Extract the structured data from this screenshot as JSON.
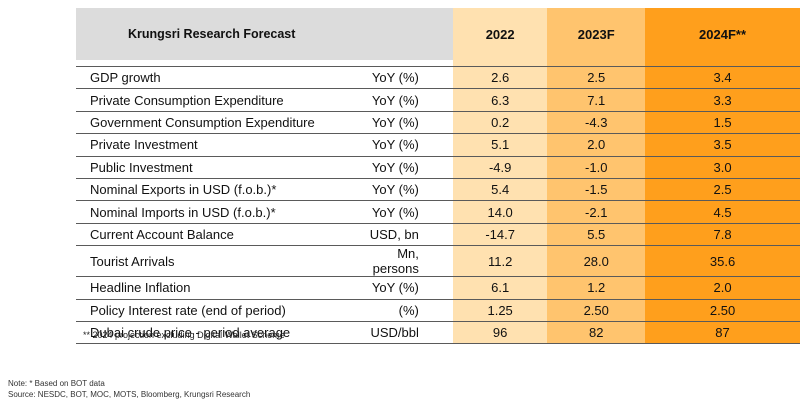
{
  "table": {
    "title": "Krungsri Research Forecast",
    "years": [
      "2022",
      "2023F",
      "2024F**"
    ],
    "rows": [
      {
        "label": "GDP growth",
        "unit": "YoY (%)",
        "values": [
          "2.6",
          "2.5",
          "3.4"
        ]
      },
      {
        "label": "Private Consumption Expenditure",
        "unit": "YoY (%)",
        "values": [
          "6.3",
          "7.1",
          "3.3"
        ]
      },
      {
        "label": "Government Consumption Expenditure",
        "unit": "YoY (%)",
        "values": [
          "0.2",
          "-4.3",
          "1.5"
        ]
      },
      {
        "label": "Private Investment",
        "unit": "YoY (%)",
        "values": [
          "5.1",
          "2.0",
          "3.5"
        ]
      },
      {
        "label": "Public Investment",
        "unit": "YoY (%)",
        "values": [
          "-4.9",
          "-1.0",
          "3.0"
        ]
      },
      {
        "label": "Nominal Exports in USD (f.o.b.)*",
        "unit": "YoY (%)",
        "values": [
          "5.4",
          "-1.5",
          "2.5"
        ]
      },
      {
        "label": "Nominal Imports in USD (f.o.b.)*",
        "unit": "YoY (%)",
        "values": [
          "14.0",
          "-2.1",
          "4.5"
        ]
      },
      {
        "label": "Current Account Balance",
        "unit": "USD, bn",
        "values": [
          "-14.7",
          "5.5",
          "7.8"
        ]
      },
      {
        "label": "Tourist Arrivals",
        "unit": "Mn, persons",
        "values": [
          "11.2",
          "28.0",
          "35.6"
        ]
      },
      {
        "label": "Headline Inflation",
        "unit": "YoY (%)",
        "values": [
          "6.1",
          "1.2",
          "2.0"
        ]
      },
      {
        "label": "Policy Interest rate (end of period)",
        "unit": "(%)",
        "values": [
          "1.25",
          "2.50",
          "2.50"
        ]
      },
      {
        "label": "Dubai crude price - period average",
        "unit": "USD/bbl",
        "values": [
          "96",
          "82",
          "87"
        ]
      }
    ]
  },
  "footnote": "** 2024 projection excluding Digital Wallet Scheme",
  "note_line": "Note: * Based on BOT data",
  "source_line": "Source: NESDC, BOT, MOC, MOTS, Bloomberg, Krungsri Research",
  "colors": {
    "header_gray": "#dcdcdc",
    "col_2022": "#ffe1b0",
    "col_2023": "#ffc46e",
    "col_2024": "#ff9f1c"
  }
}
